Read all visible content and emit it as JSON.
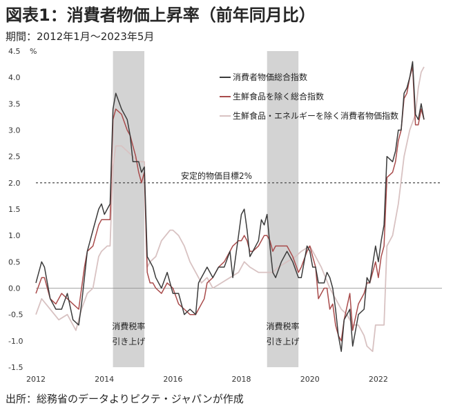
{
  "header": {
    "title": "図表1：消費者物価上昇率（前年同月比）",
    "subtitle": "期間：2012年1月～2023年5月"
  },
  "footer": {
    "source": "出所：総務省のデータよりピクテ・ジャパンが作成"
  },
  "chart_data": {
    "type": "line",
    "unit": "%",
    "ylim": [
      -1.5,
      4.5
    ],
    "yticks": [
      -1.5,
      -1.0,
      -0.5,
      0.0,
      0.5,
      1.0,
      1.5,
      2.0,
      2.5,
      3.0,
      3.5,
      4.0,
      4.5
    ],
    "xticks": [
      "2012",
      "2014",
      "2016",
      "2018",
      "2020",
      "2022"
    ],
    "xrange": [
      "2012-01",
      "2023-05"
    ],
    "reference_line": {
      "value": 2.0,
      "label": "安定的物価目標2%"
    },
    "shaded_periods": [
      {
        "start": "2014-04",
        "end": "2015-03",
        "label_line1": "消費税率",
        "label_line2": "引き上げ"
      },
      {
        "start": "2018-10",
        "end": "2019-09",
        "label_line1": "消費税率",
        "label_line2": "引き上げ"
      }
    ],
    "legend_position": "top-right",
    "series": [
      {
        "name": "消費者物価総合指数",
        "color": "#3a3a3a",
        "points": [
          [
            "2012-01",
            0.1
          ],
          [
            "2012-03",
            0.5
          ],
          [
            "2012-04",
            0.4
          ],
          [
            "2012-06",
            -0.2
          ],
          [
            "2012-08",
            -0.4
          ],
          [
            "2012-10",
            -0.4
          ],
          [
            "2012-12",
            -0.1
          ],
          [
            "2013-02",
            -0.6
          ],
          [
            "2013-04",
            -0.7
          ],
          [
            "2013-05",
            -0.3
          ],
          [
            "2013-06",
            0.2
          ],
          [
            "2013-07",
            0.7
          ],
          [
            "2013-09",
            1.1
          ],
          [
            "2013-11",
            1.5
          ],
          [
            "2013-12",
            1.6
          ],
          [
            "2014-01",
            1.4
          ],
          [
            "2014-02",
            1.5
          ],
          [
            "2014-03",
            1.6
          ],
          [
            "2014-04",
            3.4
          ],
          [
            "2014-05",
            3.7
          ],
          [
            "2014-07",
            3.4
          ],
          [
            "2014-09",
            3.2
          ],
          [
            "2014-10",
            2.9
          ],
          [
            "2014-11",
            2.4
          ],
          [
            "2014-12",
            2.4
          ],
          [
            "2015-01",
            2.4
          ],
          [
            "2015-02",
            2.2
          ],
          [
            "2015-03",
            2.3
          ],
          [
            "2015-04",
            0.6
          ],
          [
            "2015-05",
            0.5
          ],
          [
            "2015-06",
            0.4
          ],
          [
            "2015-07",
            0.2
          ],
          [
            "2015-09",
            0.0
          ],
          [
            "2015-11",
            0.3
          ],
          [
            "2016-01",
            -0.1
          ],
          [
            "2016-03",
            -0.1
          ],
          [
            "2016-05",
            -0.5
          ],
          [
            "2016-07",
            -0.4
          ],
          [
            "2016-09",
            -0.5
          ],
          [
            "2016-10",
            0.1
          ],
          [
            "2016-12",
            0.3
          ],
          [
            "2017-01",
            0.4
          ],
          [
            "2017-03",
            0.2
          ],
          [
            "2017-05",
            0.4
          ],
          [
            "2017-07",
            0.4
          ],
          [
            "2017-09",
            0.7
          ],
          [
            "2017-10",
            0.2
          ],
          [
            "2017-12",
            1.0
          ],
          [
            "2018-01",
            1.4
          ],
          [
            "2018-02",
            1.5
          ],
          [
            "2018-03",
            1.1
          ],
          [
            "2018-04",
            0.6
          ],
          [
            "2018-05",
            0.7
          ],
          [
            "2018-07",
            0.9
          ],
          [
            "2018-08",
            1.3
          ],
          [
            "2018-09",
            1.2
          ],
          [
            "2018-10",
            1.4
          ],
          [
            "2018-11",
            0.8
          ],
          [
            "2018-12",
            0.3
          ],
          [
            "2019-01",
            0.2
          ],
          [
            "2019-03",
            0.5
          ],
          [
            "2019-05",
            0.7
          ],
          [
            "2019-07",
            0.5
          ],
          [
            "2019-09",
            0.2
          ],
          [
            "2019-10",
            0.2
          ],
          [
            "2019-12",
            0.8
          ],
          [
            "2020-01",
            0.7
          ],
          [
            "2020-02",
            0.4
          ],
          [
            "2020-03",
            0.4
          ],
          [
            "2020-04",
            0.1
          ],
          [
            "2020-06",
            0.1
          ],
          [
            "2020-07",
            0.3
          ],
          [
            "2020-08",
            0.2
          ],
          [
            "2020-09",
            0.0
          ],
          [
            "2020-10",
            -0.4
          ],
          [
            "2020-11",
            -0.9
          ],
          [
            "2020-12",
            -1.2
          ],
          [
            "2021-01",
            -0.6
          ],
          [
            "2021-03",
            -0.4
          ],
          [
            "2021-04",
            -1.1
          ],
          [
            "2021-06",
            -0.5
          ],
          [
            "2021-08",
            -0.4
          ],
          [
            "2021-09",
            0.2
          ],
          [
            "2021-10",
            0.1
          ],
          [
            "2021-12",
            0.8
          ],
          [
            "2022-01",
            0.5
          ],
          [
            "2022-02",
            0.9
          ],
          [
            "2022-03",
            1.2
          ],
          [
            "2022-04",
            2.5
          ],
          [
            "2022-06",
            2.4
          ],
          [
            "2022-07",
            2.6
          ],
          [
            "2022-08",
            3.0
          ],
          [
            "2022-09",
            3.0
          ],
          [
            "2022-10",
            3.7
          ],
          [
            "2022-11",
            3.8
          ],
          [
            "2022-12",
            4.0
          ],
          [
            "2023-01",
            4.3
          ],
          [
            "2023-02",
            3.3
          ],
          [
            "2023-03",
            3.2
          ],
          [
            "2023-04",
            3.5
          ],
          [
            "2023-05",
            3.2
          ]
        ]
      },
      {
        "name": "生鮮食品を除く総合指数",
        "color": "#a84a4a",
        "points": [
          [
            "2012-01",
            -0.1
          ],
          [
            "2012-03",
            0.2
          ],
          [
            "2012-04",
            0.2
          ],
          [
            "2012-06",
            -0.2
          ],
          [
            "2012-08",
            -0.3
          ],
          [
            "2012-10",
            -0.1
          ],
          [
            "2012-12",
            -0.2
          ],
          [
            "2013-02",
            -0.3
          ],
          [
            "2013-04",
            -0.4
          ],
          [
            "2013-05",
            0.0
          ],
          [
            "2013-06",
            0.4
          ],
          [
            "2013-07",
            0.7
          ],
          [
            "2013-09",
            0.8
          ],
          [
            "2013-11",
            1.2
          ],
          [
            "2013-12",
            1.3
          ],
          [
            "2014-01",
            1.3
          ],
          [
            "2014-02",
            1.3
          ],
          [
            "2014-03",
            1.3
          ],
          [
            "2014-04",
            3.2
          ],
          [
            "2014-05",
            3.4
          ],
          [
            "2014-07",
            3.3
          ],
          [
            "2014-09",
            3.0
          ],
          [
            "2014-10",
            2.9
          ],
          [
            "2014-11",
            2.7
          ],
          [
            "2014-12",
            2.5
          ],
          [
            "2015-01",
            2.2
          ],
          [
            "2015-02",
            2.0
          ],
          [
            "2015-03",
            2.2
          ],
          [
            "2015-04",
            0.3
          ],
          [
            "2015-05",
            0.1
          ],
          [
            "2015-06",
            0.1
          ],
          [
            "2015-07",
            0.0
          ],
          [
            "2015-09",
            -0.1
          ],
          [
            "2015-11",
            0.1
          ],
          [
            "2016-01",
            0.0
          ],
          [
            "2016-03",
            -0.3
          ],
          [
            "2016-05",
            -0.4
          ],
          [
            "2016-07",
            -0.5
          ],
          [
            "2016-09",
            -0.5
          ],
          [
            "2016-10",
            -0.4
          ],
          [
            "2016-12",
            -0.2
          ],
          [
            "2017-01",
            0.1
          ],
          [
            "2017-03",
            0.2
          ],
          [
            "2017-05",
            0.4
          ],
          [
            "2017-07",
            0.5
          ],
          [
            "2017-09",
            0.7
          ],
          [
            "2017-10",
            0.8
          ],
          [
            "2017-12",
            0.9
          ],
          [
            "2018-01",
            0.9
          ],
          [
            "2018-02",
            1.0
          ],
          [
            "2018-03",
            0.9
          ],
          [
            "2018-04",
            0.7
          ],
          [
            "2018-05",
            0.7
          ],
          [
            "2018-07",
            0.8
          ],
          [
            "2018-08",
            0.9
          ],
          [
            "2018-09",
            1.0
          ],
          [
            "2018-10",
            1.0
          ],
          [
            "2018-11",
            0.9
          ],
          [
            "2018-12",
            0.7
          ],
          [
            "2019-01",
            0.8
          ],
          [
            "2019-03",
            0.8
          ],
          [
            "2019-05",
            0.8
          ],
          [
            "2019-07",
            0.6
          ],
          [
            "2019-09",
            0.3
          ],
          [
            "2019-10",
            0.4
          ],
          [
            "2019-12",
            0.7
          ],
          [
            "2020-01",
            0.8
          ],
          [
            "2020-02",
            0.6
          ],
          [
            "2020-03",
            0.4
          ],
          [
            "2020-04",
            -0.2
          ],
          [
            "2020-06",
            0.0
          ],
          [
            "2020-07",
            0.0
          ],
          [
            "2020-08",
            -0.4
          ],
          [
            "2020-09",
            -0.3
          ],
          [
            "2020-10",
            -0.7
          ],
          [
            "2020-11",
            -0.9
          ],
          [
            "2020-12",
            -1.0
          ],
          [
            "2021-01",
            -0.6
          ],
          [
            "2021-03",
            -0.1
          ],
          [
            "2021-04",
            -0.8
          ],
          [
            "2021-06",
            -0.3
          ],
          [
            "2021-08",
            -0.1
          ],
          [
            "2021-09",
            0.1
          ],
          [
            "2021-10",
            0.1
          ],
          [
            "2021-12",
            0.5
          ],
          [
            "2022-01",
            0.2
          ],
          [
            "2022-02",
            0.6
          ],
          [
            "2022-03",
            0.8
          ],
          [
            "2022-04",
            2.1
          ],
          [
            "2022-06",
            2.2
          ],
          [
            "2022-07",
            2.4
          ],
          [
            "2022-08",
            2.8
          ],
          [
            "2022-09",
            3.0
          ],
          [
            "2022-10",
            3.6
          ],
          [
            "2022-11",
            3.7
          ],
          [
            "2022-12",
            4.0
          ],
          [
            "2023-01",
            4.2
          ],
          [
            "2023-02",
            3.1
          ],
          [
            "2023-03",
            3.1
          ],
          [
            "2023-04",
            3.4
          ],
          [
            "2023-05",
            3.2
          ]
        ]
      },
      {
        "name": "生鮮食品・エネルギーを除く消費者物価指数",
        "color": "#d8c2c2",
        "points": [
          [
            "2012-01",
            -0.5
          ],
          [
            "2012-03",
            -0.2
          ],
          [
            "2012-06",
            -0.4
          ],
          [
            "2012-09",
            -0.6
          ],
          [
            "2012-12",
            -0.5
          ],
          [
            "2013-03",
            -0.8
          ],
          [
            "2013-05",
            -0.4
          ],
          [
            "2013-07",
            -0.1
          ],
          [
            "2013-09",
            0.0
          ],
          [
            "2013-11",
            0.6
          ],
          [
            "2013-12",
            0.7
          ],
          [
            "2014-02",
            0.8
          ],
          [
            "2014-03",
            0.8
          ],
          [
            "2014-04",
            2.3
          ],
          [
            "2014-05",
            2.7
          ],
          [
            "2014-07",
            2.7
          ],
          [
            "2014-09",
            2.6
          ],
          [
            "2014-11",
            2.5
          ],
          [
            "2015-01",
            2.4
          ],
          [
            "2015-03",
            2.4
          ],
          [
            "2015-04",
            0.4
          ],
          [
            "2015-05",
            0.5
          ],
          [
            "2015-07",
            0.6
          ],
          [
            "2015-09",
            0.9
          ],
          [
            "2015-12",
            1.1
          ],
          [
            "2016-01",
            1.1
          ],
          [
            "2016-03",
            1.0
          ],
          [
            "2016-05",
            0.8
          ],
          [
            "2016-07",
            0.5
          ],
          [
            "2016-09",
            0.3
          ],
          [
            "2016-11",
            0.1
          ],
          [
            "2017-01",
            0.2
          ],
          [
            "2017-03",
            0.0
          ],
          [
            "2017-06",
            0.1
          ],
          [
            "2017-09",
            0.2
          ],
          [
            "2017-12",
            0.3
          ],
          [
            "2018-02",
            0.5
          ],
          [
            "2018-04",
            0.4
          ],
          [
            "2018-07",
            0.3
          ],
          [
            "2018-10",
            0.3
          ],
          [
            "2018-12",
            0.3
          ],
          [
            "2019-02",
            0.4
          ],
          [
            "2019-05",
            0.5
          ],
          [
            "2019-08",
            0.6
          ],
          [
            "2019-10",
            0.7
          ],
          [
            "2020-01",
            0.8
          ],
          [
            "2020-03",
            0.6
          ],
          [
            "2020-05",
            0.4
          ],
          [
            "2020-08",
            0.0
          ],
          [
            "2020-10",
            -0.2
          ],
          [
            "2020-12",
            -0.4
          ],
          [
            "2021-02",
            -0.5
          ],
          [
            "2021-04",
            -0.7
          ],
          [
            "2021-06",
            -0.7
          ],
          [
            "2021-08",
            -0.9
          ],
          [
            "2021-09",
            -1.1
          ],
          [
            "2021-11",
            -1.2
          ],
          [
            "2021-12",
            -0.7
          ],
          [
            "2022-01",
            -0.7
          ],
          [
            "2022-02",
            -0.7
          ],
          [
            "2022-03",
            -0.7
          ],
          [
            "2022-04",
            0.8
          ],
          [
            "2022-06",
            1.0
          ],
          [
            "2022-08",
            1.6
          ],
          [
            "2022-10",
            2.5
          ],
          [
            "2022-12",
            3.0
          ],
          [
            "2023-02",
            3.3
          ],
          [
            "2023-03",
            3.8
          ],
          [
            "2023-04",
            4.1
          ],
          [
            "2023-05",
            4.2
          ]
        ]
      }
    ]
  }
}
